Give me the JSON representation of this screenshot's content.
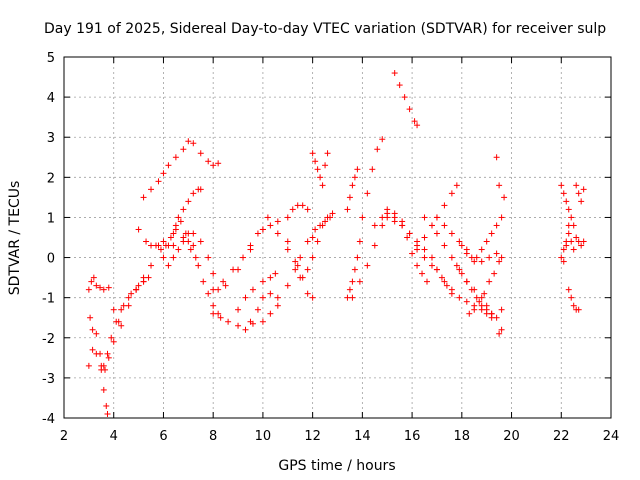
{
  "chart_data": {
    "type": "scatter",
    "title": "Day 191 of 2025, Sidereal Day-to-day VTEC variation (SDTVAR) for receiver sulp",
    "xlabel": "GPS time / hours",
    "ylabel": "SDTVAR / TECUs",
    "xlim": [
      2,
      24
    ],
    "ylim": [
      -4,
      5
    ],
    "xticks": [
      "2",
      "4",
      "6",
      "8",
      "10",
      "12",
      "14",
      "16",
      "18",
      "20",
      "22",
      "24"
    ],
    "yticks": [
      "-4",
      "-3",
      "-2",
      "-1",
      "0",
      "1",
      "2",
      "3",
      "4",
      "5"
    ],
    "grid": true,
    "marker": "+",
    "color": "#ff0000",
    "series": [
      {
        "x": [
          3.0,
          3.15,
          3.3,
          3.45,
          3.6,
          3.75,
          3.9,
          4.1,
          4.3,
          4.6,
          4.9,
          5.2
        ],
        "y": [
          -2.7,
          -2.3,
          -1.9,
          -2.4,
          -2.7,
          -2.4,
          -2.0,
          -1.6,
          -1.3,
          -1.0,
          -0.8,
          -0.6
        ]
      },
      {
        "x": [
          3.0,
          3.1,
          3.2,
          3.3,
          3.45,
          3.6,
          3.8,
          4.0,
          4.2,
          4.4,
          4.7,
          5.0,
          5.2,
          5.4
        ],
        "y": [
          -0.8,
          -0.6,
          -0.5,
          -0.7,
          -0.75,
          -0.8,
          -0.75,
          -1.3,
          -1.6,
          -1.2,
          -0.9,
          -0.7,
          -0.6,
          -0.5
        ]
      },
      {
        "x": [
          3.05,
          3.15,
          3.3,
          3.5,
          3.65,
          3.8,
          4.0,
          4.3,
          4.6,
          4.9
        ],
        "y": [
          -1.5,
          -1.8,
          -2.4,
          -2.7,
          -2.8,
          -2.5,
          -2.1,
          -1.7,
          -1.2,
          -0.8
        ]
      },
      {
        "x": [
          3.5,
          3.6,
          3.7,
          3.75
        ],
        "y": [
          -2.8,
          -3.3,
          -3.7,
          -3.9
        ]
      },
      {
        "x": [
          4.9,
          5.2,
          5.5,
          5.8,
          6.0,
          6.4,
          6.8,
          7.2,
          7.5,
          7.8,
          8.0,
          8.2
        ],
        "y": [
          -0.8,
          -0.5,
          -0.2,
          0.3,
          0.4,
          0.3,
          0.5,
          0.6,
          0.4,
          0.0,
          -0.4,
          -0.8
        ]
      },
      {
        "x": [
          5.0,
          5.3,
          5.5,
          5.7,
          5.9,
          6.1,
          6.3,
          6.5,
          6.7,
          6.9,
          7.0,
          7.1,
          7.3
        ],
        "y": [
          0.7,
          0.4,
          0.3,
          0.3,
          0.2,
          0.3,
          0.5,
          0.7,
          0.9,
          0.6,
          0.4,
          0.2,
          0.0
        ]
      },
      {
        "x": [
          5.2,
          5.5,
          5.8,
          6.0,
          6.2,
          6.5,
          6.8,
          7.0,
          7.2,
          7.5,
          7.8,
          8.0,
          8.2
        ],
        "y": [
          1.5,
          1.7,
          1.9,
          2.1,
          2.3,
          2.5,
          2.7,
          2.9,
          2.85,
          2.6,
          2.4,
          2.3,
          2.35
        ]
      },
      {
        "x": [
          6.0,
          6.2,
          6.4,
          6.5,
          6.6,
          6.8,
          7.0,
          7.2,
          7.4,
          7.5
        ],
        "y": [
          0.0,
          0.3,
          0.6,
          0.8,
          1.0,
          1.2,
          1.4,
          1.6,
          1.7,
          1.7
        ]
      },
      {
        "x": [
          6.2,
          6.4,
          6.6,
          6.8,
          7.0,
          7.2,
          7.4,
          7.6,
          7.8,
          8.0,
          8.2
        ],
        "y": [
          -0.2,
          0.0,
          0.2,
          0.4,
          0.6,
          0.3,
          -0.2,
          -0.6,
          -0.9,
          -1.2,
          -1.4
        ]
      },
      {
        "x": [
          8.0,
          8.3,
          8.6,
          9.0,
          9.3,
          9.6,
          10.0,
          10.3,
          10.6
        ],
        "y": [
          -1.4,
          -1.5,
          -1.6,
          -1.7,
          -1.8,
          -1.65,
          -1.6,
          -1.4,
          -1.2
        ]
      },
      {
        "x": [
          8.0,
          8.4,
          8.8,
          9.2,
          9.5,
          9.8,
          10.0,
          10.3,
          10.6,
          11.0,
          11.3,
          11.5,
          11.8,
          12.0
        ],
        "y": [
          -0.8,
          -0.6,
          -0.3,
          0.0,
          0.3,
          0.6,
          0.7,
          0.8,
          0.9,
          0.4,
          -0.1,
          -0.5,
          -0.9,
          -1.0
        ]
      },
      {
        "x": [
          8.5,
          9.0,
          9.5,
          10.0,
          10.2,
          10.6,
          11.0,
          11.4
        ],
        "y": [
          -0.7,
          -0.3,
          0.2,
          0.7,
          1.0,
          0.6,
          0.2,
          -0.2
        ]
      },
      {
        "x": [
          9.5,
          9.8,
          10.0,
          10.3,
          10.6,
          11.0,
          11.3,
          11.5,
          11.8
        ],
        "y": [
          -1.6,
          -1.3,
          -1.0,
          -0.9,
          -1.0,
          -0.7,
          -0.3,
          0.0,
          0.4
        ]
      },
      {
        "x": [
          9.0,
          9.3,
          9.6,
          10.0,
          10.3,
          10.5
        ],
        "y": [
          -1.3,
          -1.0,
          -0.8,
          -0.6,
          -0.5,
          -0.4
        ]
      },
      {
        "x": [
          11.0,
          11.2,
          11.4,
          11.6,
          11.8
        ],
        "y": [
          1.0,
          1.2,
          1.3,
          1.3,
          1.2
        ]
      },
      {
        "x": [
          11.6,
          11.8,
          12.0,
          12.2,
          12.4,
          12.6,
          12.8
        ],
        "y": [
          -0.5,
          -0.3,
          0.0,
          0.4,
          0.8,
          1.0,
          1.1
        ]
      },
      {
        "x": [
          12.0,
          12.1,
          12.2,
          12.3,
          12.4,
          12.5,
          12.6
        ],
        "y": [
          2.6,
          2.4,
          2.2,
          2.0,
          1.8,
          2.3,
          2.6
        ]
      },
      {
        "x": [
          12.0,
          12.1,
          12.3,
          12.5,
          12.7
        ],
        "y": [
          0.5,
          0.7,
          0.8,
          0.9,
          1.0
        ]
      },
      {
        "x": [
          13.4,
          13.5,
          13.6,
          13.7,
          13.8,
          13.9,
          14.0,
          14.2,
          14.4,
          14.6,
          14.8
        ],
        "y": [
          -1.0,
          -0.8,
          -0.6,
          -0.3,
          0.0,
          0.4,
          1.0,
          1.6,
          2.2,
          2.7,
          2.95
        ]
      },
      {
        "x": [
          13.4,
          13.5,
          13.6,
          13.7,
          13.8
        ],
        "y": [
          1.2,
          1.5,
          1.8,
          2.0,
          2.2
        ]
      },
      {
        "x": [
          13.6,
          13.9,
          14.2,
          14.5,
          14.8,
          15.0,
          15.3,
          15.6,
          15.8,
          16.0,
          16.2,
          16.4,
          16.6
        ],
        "y": [
          -1.0,
          -0.6,
          -0.2,
          0.3,
          0.8,
          1.1,
          1.0,
          0.8,
          0.5,
          0.1,
          -0.2,
          -0.4,
          -0.6
        ]
      },
      {
        "x": [
          14.5,
          14.8,
          15.0,
          15.3,
          15.6,
          15.9,
          16.2,
          16.5,
          16.8,
          17.0,
          17.2,
          17.4,
          17.6
        ],
        "y": [
          0.8,
          1.0,
          1.2,
          1.1,
          0.9,
          0.6,
          0.3,
          0.0,
          -0.2,
          -0.3,
          -0.5,
          -0.7,
          -0.9
        ]
      },
      {
        "x": [
          15.3,
          15.5,
          15.7,
          15.9,
          16.1,
          16.2
        ],
        "y": [
          4.6,
          4.3,
          4.0,
          3.7,
          3.4,
          3.3
        ]
      },
      {
        "x": [
          15.0,
          15.3,
          15.6,
          15.9,
          16.2,
          16.5,
          16.8,
          17.0,
          17.3,
          17.6,
          17.9,
          18.2,
          18.5,
          18.8,
          19.0,
          19.2
        ],
        "y": [
          1.0,
          0.9,
          0.8,
          0.6,
          0.4,
          0.2,
          0.0,
          -0.3,
          -0.6,
          -0.8,
          -1.0,
          -1.1,
          -1.2,
          -1.3,
          -1.4,
          -1.5
        ]
      },
      {
        "x": [
          16.5,
          16.8,
          17.0,
          17.3,
          17.6,
          17.9,
          18.2,
          18.5,
          18.8,
          19.0,
          19.2
        ],
        "y": [
          1.0,
          0.8,
          0.6,
          0.3,
          0.0,
          -0.3,
          -0.6,
          -0.8,
          -1.0,
          -1.2,
          -1.4
        ]
      },
      {
        "x": [
          16.2,
          16.5,
          16.8,
          17.0,
          17.3,
          17.6,
          17.8
        ],
        "y": [
          0.2,
          0.5,
          0.8,
          1.0,
          1.3,
          1.6,
          1.8
        ]
      },
      {
        "x": [
          17.0,
          17.3,
          17.6,
          17.9,
          18.2,
          18.5,
          18.8,
          19.1,
          19.4,
          19.6
        ],
        "y": [
          1.0,
          0.8,
          0.6,
          0.4,
          0.1,
          -0.1,
          -0.1,
          0.0,
          0.1,
          0.0
        ]
      },
      {
        "x": [
          17.8,
          18.0,
          18.2,
          18.4,
          18.6,
          18.8,
          19.0,
          19.2,
          19.4,
          19.6
        ],
        "y": [
          -0.2,
          -0.4,
          -0.6,
          -0.8,
          -1.0,
          -1.2,
          -1.3,
          -1.4,
          -1.5,
          -1.3
        ]
      },
      {
        "x": [
          18.0,
          18.2,
          18.4,
          18.6,
          18.8,
          19.0,
          19.2,
          19.4,
          19.6,
          19.7
        ],
        "y": [
          0.3,
          0.2,
          0.0,
          0.0,
          0.2,
          0.4,
          0.6,
          0.8,
          1.0,
          1.5
        ]
      },
      {
        "x": [
          18.3,
          18.5,
          18.7,
          18.9,
          19.1,
          19.3,
          19.5
        ],
        "y": [
          -1.4,
          -1.3,
          -1.1,
          -0.9,
          -0.6,
          -0.4,
          -0.1
        ]
      },
      {
        "x": [
          19.4,
          19.5,
          19.5,
          19.6
        ],
        "y": [
          2.5,
          1.8,
          -1.9,
          -1.8
        ]
      },
      {
        "x": [
          22.0,
          22.1,
          22.2,
          22.3,
          22.4,
          22.5
        ],
        "y": [
          1.8,
          1.6,
          1.4,
          1.2,
          1.0,
          0.8
        ]
      },
      {
        "x": [
          22.0,
          22.1,
          22.2,
          22.3,
          22.4,
          22.5
        ],
        "y": [
          0.0,
          0.2,
          0.4,
          0.6,
          0.4,
          0.2
        ]
      },
      {
        "x": [
          22.3,
          22.4,
          22.5,
          22.6,
          22.7
        ],
        "y": [
          -0.8,
          -1.0,
          -1.2,
          -1.3,
          -1.3
        ]
      },
      {
        "x": [
          22.6,
          22.7,
          22.8,
          22.9
        ],
        "y": [
          1.8,
          1.6,
          1.4,
          1.7
        ]
      },
      {
        "x": [
          22.6,
          22.7,
          22.8,
          22.9
        ],
        "y": [
          0.5,
          0.4,
          0.3,
          0.4
        ]
      },
      {
        "x": [
          22.1,
          22.2,
          22.3
        ],
        "y": [
          -0.1,
          0.3,
          0.8
        ]
      }
    ]
  }
}
